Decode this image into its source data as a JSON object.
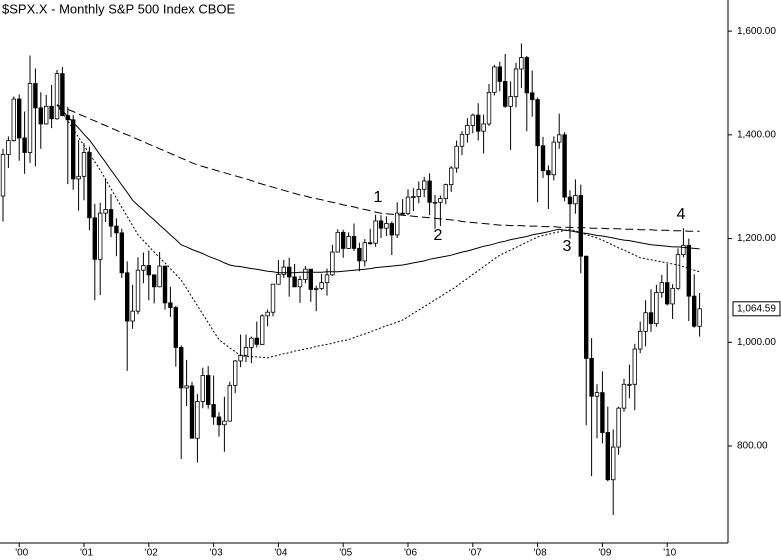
{
  "chart_data": {
    "type": "candlestick",
    "title": "$SPX.X - Monthly  S&P 500 Index  CBOE",
    "categories": [
      null,
      null,
      null,
      "'00",
      null,
      null,
      null,
      null,
      null,
      null,
      null,
      null,
      null,
      null,
      null,
      "'01",
      null,
      null,
      null,
      null,
      null,
      null,
      null,
      null,
      null,
      null,
      null,
      "'02",
      null,
      null,
      null,
      null,
      null,
      null,
      null,
      null,
      null,
      null,
      null,
      "'03",
      null,
      null,
      null,
      null,
      null,
      null,
      null,
      null,
      null,
      null,
      null,
      "'04",
      null,
      null,
      null,
      null,
      null,
      null,
      null,
      null,
      null,
      null,
      null,
      "'05",
      null,
      null,
      null,
      null,
      null,
      null,
      null,
      null,
      null,
      null,
      null,
      "'06",
      null,
      null,
      null,
      null,
      null,
      null,
      null,
      null,
      null,
      null,
      null,
      "'07",
      null,
      null,
      null,
      null,
      null,
      null,
      null,
      null,
      null,
      null,
      null,
      "'08",
      null,
      null,
      null,
      null,
      null,
      null,
      null,
      null,
      null,
      null,
      null,
      "'09",
      null,
      null,
      null,
      null,
      null,
      null,
      null,
      null,
      null,
      null,
      null,
      "'10",
      null,
      null,
      null,
      null,
      null,
      null
    ],
    "open": [
      1282,
      1362,
      1389,
      1469,
      1394,
      1366,
      1499,
      1452,
      1421,
      1455,
      1431,
      1518,
      1437,
      1429,
      1315,
      1320,
      1366,
      1240,
      1160,
      1249,
      1256,
      1224,
      1211,
      1134,
      1041,
      1060,
      1139,
      1148,
      1130,
      1107,
      1147,
      1076,
      1067,
      990,
      912,
      916,
      815,
      886,
      936,
      880,
      856,
      841,
      848,
      917,
      964,
      975,
      990,
      1008,
      996,
      1051,
      1058,
      1112,
      1131,
      1145,
      1126,
      1107,
      1121,
      1141,
      1102,
      1104,
      1115,
      1130,
      1174,
      1212,
      1181,
      1204,
      1181,
      1157,
      1192,
      1191,
      1234,
      1220,
      1229,
      1207,
      1249,
      1248,
      1280,
      1281,
      1295,
      1311,
      1270,
      1270,
      1277,
      1304,
      1336,
      1378,
      1401,
      1418,
      1438,
      1407,
      1421,
      1482,
      1531,
      1503,
      1455,
      1474,
      1527,
      1549,
      1481,
      1468,
      1379,
      1331,
      1323,
      1386,
      1400,
      1280,
      1267,
      1283,
      1166,
      969,
      896,
      903,
      826,
      735,
      798,
      873,
      919,
      919,
      987,
      1021,
      1057,
      1036,
      1096,
      1115,
      1074,
      1104,
      1169,
      1187,
      1089,
      1031
    ],
    "high": [
      1373,
      1397,
      1474,
      1478,
      1445,
      1553,
      1528,
      1482,
      1477,
      1496,
      1525,
      1531,
      1454,
      1438,
      1390,
      1384,
      1377,
      1267,
      1269,
      1316,
      1286,
      1239,
      1219,
      1156,
      1111,
      1164,
      1173,
      1177,
      1131,
      1174,
      1147,
      1107,
      1070,
      994,
      966,
      924,
      900,
      951,
      954,
      936,
      865,
      895,
      924,
      966,
      1015,
      1015,
      1011,
      1040,
      1054,
      1063,
      1112,
      1159,
      1159,
      1163,
      1151,
      1128,
      1147,
      1141,
      1109,
      1132,
      1142,
      1188,
      1218,
      1217,
      1212,
      1229,
      1192,
      1199,
      1219,
      1246,
      1245,
      1243,
      1233,
      1270,
      1276,
      1295,
      1297,
      1310,
      1319,
      1326,
      1284,
      1283,
      1306,
      1340,
      1389,
      1407,
      1432,
      1441,
      1461,
      1439,
      1498,
      1535,
      1541,
      1556,
      1503,
      1539,
      1576,
      1552,
      1524,
      1472,
      1396,
      1341,
      1397,
      1441,
      1405,
      1293,
      1314,
      1304,
      1167,
      1008,
      919,
      944,
      876,
      832,
      876,
      930,
      957,
      997,
      1040,
      1081,
      1102,
      1111,
      1130,
      1151,
      1112,
      1181,
      1220,
      1200,
      1131,
      1095
    ],
    "low": [
      1233,
      1336,
      1387,
      1350,
      1325,
      1346,
      1339,
      1373,
      1420,
      1413,
      1429,
      1436,
      1305,
      1294,
      1254,
      1274,
      1216,
      1081,
      1091,
      1232,
      1203,
      1166,
      1124,
      945,
      1026,
      1054,
      1114,
      1081,
      1075,
      1106,
      1063,
      1049,
      953,
      775,
      877,
      815,
      768,
      873,
      872,
      841,
      818,
      789,
      847,
      902,
      952,
      962,
      960,
      990,
      995,
      1031,
      1050,
      1112,
      1124,
      1088,
      1106,
      1076,
      1114,
      1078,
      1060,
      1101,
      1090,
      1128,
      1173,
      1163,
      1180,
      1176,
      1137,
      1146,
      1188,
      1184,
      1201,
      1205,
      1168,
      1201,
      1246,
      1245,
      1253,
      1268,
      1280,
      1245,
      1219,
      1224,
      1266,
      1290,
      1327,
      1361,
      1385,
      1403,
      1389,
      1364,
      1417,
      1476,
      1484,
      1452,
      1371,
      1453,
      1490,
      1407,
      1435,
      1270,
      1317,
      1257,
      1312,
      1373,
      1272,
      1200,
      1248,
      1133,
      840,
      742,
      815,
      805,
      732,
      667,
      783,
      866,
      892,
      869,
      979,
      992,
      1020,
      1030,
      1086,
      1071,
      1045,
      1101,
      1164,
      1041,
      1028,
      1011
    ],
    "close": [
      1362,
      1389,
      1469,
      1394,
      1366,
      1499,
      1452,
      1421,
      1455,
      1431,
      1518,
      1437,
      1429,
      1315,
      1320,
      1366,
      1240,
      1160,
      1249,
      1256,
      1224,
      1211,
      1134,
      1041,
      1060,
      1139,
      1148,
      1130,
      1107,
      1147,
      1076,
      1067,
      990,
      912,
      916,
      815,
      886,
      936,
      880,
      856,
      841,
      848,
      917,
      964,
      975,
      990,
      1008,
      996,
      1051,
      1058,
      1112,
      1131,
      1145,
      1126,
      1107,
      1121,
      1141,
      1102,
      1104,
      1115,
      1130,
      1174,
      1212,
      1181,
      1204,
      1181,
      1157,
      1192,
      1191,
      1234,
      1220,
      1229,
      1207,
      1249,
      1248,
      1280,
      1281,
      1295,
      1311,
      1270,
      1270,
      1277,
      1304,
      1336,
      1378,
      1401,
      1418,
      1438,
      1407,
      1421,
      1482,
      1531,
      1503,
      1455,
      1474,
      1527,
      1549,
      1481,
      1468,
      1379,
      1331,
      1323,
      1386,
      1400,
      1280,
      1267,
      1283,
      1166,
      969,
      896,
      903,
      826,
      735,
      798,
      873,
      919,
      919,
      987,
      1021,
      1057,
      1036,
      1096,
      1115,
      1074,
      1104,
      1169,
      1187,
      1089,
      1031,
      1064.59
    ],
    "last_close_label": "1,064.59",
    "lines": [
      {
        "style": "dashed",
        "color": "#000000",
        "values": [
          null,
          null,
          null,
          null,
          null,
          null,
          null,
          null,
          null,
          null,
          1458,
          1454,
          1449,
          1445,
          1440,
          1436,
          1431,
          1427,
          1422,
          1418,
          1413,
          1409,
          1404,
          1400,
          1396,
          1391,
          1387,
          1382,
          1378,
          1373,
          1369,
          1364,
          1360,
          1355,
          1351,
          1346,
          1342,
          1339,
          1336,
          1333,
          1330,
          1327,
          1324,
          1321,
          1318,
          1315,
          1312,
          1308,
          1305,
          1302,
          1299,
          1296,
          1293,
          1290,
          1287,
          1284,
          1282,
          1279,
          1277,
          1275,
          1272,
          1270,
          1268,
          1265,
          1263,
          1261,
          1258,
          1256,
          1254,
          1251,
          1249,
          1248,
          1247,
          1246,
          1245,
          1244,
          1243,
          1242,
          1241,
          1240,
          1239,
          1238,
          1237,
          1236,
          1235,
          1233,
          1232,
          1231,
          1230,
          1229,
          1228,
          1227,
          1226,
          1226,
          1225,
          1225,
          1225,
          1224,
          1224,
          1224,
          1223,
          1223,
          1223,
          1222,
          1222,
          1222,
          1221,
          1221,
          1221,
          1220,
          1220,
          1220,
          1219,
          1219,
          1219,
          1218,
          1218,
          1218,
          1217,
          1217,
          1217,
          1216,
          1216,
          1216,
          1215,
          1215,
          1215,
          1214,
          1214,
          1214
        ]
      },
      {
        "style": "solid",
        "color": "#000000",
        "values": [
          null,
          null,
          null,
          null,
          null,
          null,
          null,
          null,
          null,
          null,
          1458,
          1447,
          1435,
          1424,
          1413,
          1401,
          1390,
          1376,
          1361,
          1347,
          1332,
          1318,
          1303,
          1289,
          1274,
          1264,
          1255,
          1245,
          1236,
          1226,
          1217,
          1207,
          1198,
          1188,
          1184,
          1179,
          1175,
          1171,
          1166,
          1162,
          1158,
          1153,
          1149,
          1147,
          1146,
          1144,
          1142,
          1141,
          1139,
          1137,
          1136,
          1134,
          1134,
          1134,
          1134,
          1135,
          1135,
          1135,
          1135,
          1135,
          1136,
          1136,
          1136,
          1137,
          1138,
          1139,
          1140,
          1141,
          1142,
          1144,
          1145,
          1146,
          1147,
          1148,
          1149,
          1151,
          1153,
          1155,
          1157,
          1160,
          1162,
          1164,
          1166,
          1168,
          1171,
          1174,
          1176,
          1179,
          1182,
          1185,
          1187,
          1190,
          1193,
          1195,
          1198,
          1200,
          1202,
          1204,
          1207,
          1209,
          1211,
          1213,
          1216,
          1218,
          1216,
          1215,
          1213,
          1211,
          1210,
          1208,
          1206,
          1205,
          1203,
          1201,
          1199,
          1197,
          1196,
          1194,
          1192,
          1190,
          1188,
          1187,
          1186,
          1185,
          1184,
          1184,
          1183,
          1182,
          1181,
          1180
        ]
      },
      {
        "style": "dotted",
        "color": "#000000",
        "values": [
          null,
          null,
          null,
          null,
          null,
          null,
          null,
          null,
          null,
          null,
          1458,
          1442,
          1427,
          1411,
          1395,
          1379,
          1364,
          1348,
          1332,
          1314,
          1296,
          1278,
          1260,
          1243,
          1225,
          1207,
          1196,
          1185,
          1174,
          1163,
          1153,
          1142,
          1131,
          1120,
          1104,
          1087,
          1071,
          1054,
          1038,
          1021,
          1005,
          997,
          989,
          982,
          974,
          973,
          972,
          972,
          971,
          970,
          973,
          975,
          978,
          980,
          983,
          985,
          987,
          989,
          992,
          994,
          996,
          998,
          1001,
          1003,
          1005,
          1009,
          1013,
          1016,
          1020,
          1024,
          1028,
          1032,
          1035,
          1039,
          1043,
          1049,
          1056,
          1062,
          1069,
          1075,
          1082,
          1088,
          1095,
          1101,
          1108,
          1116,
          1123,
          1131,
          1138,
          1146,
          1153,
          1161,
          1168,
          1173,
          1178,
          1183,
          1188,
          1193,
          1198,
          1203,
          1206,
          1208,
          1211,
          1213,
          1216,
          1218,
          1215,
          1211,
          1208,
          1204,
          1201,
          1197,
          1192,
          1187,
          1182,
          1178,
          1173,
          1168,
          1163,
          1161,
          1159,
          1157,
          1155,
          1153,
          1151,
          1149,
          1146,
          1142,
          1139,
          1136
        ]
      }
    ],
    "annotations": [
      "1",
      "2",
      "3",
      "4"
    ],
    "ylim": [
      613,
      1660
    ],
    "yticks": [
      {
        "value": 800,
        "label": "800.00"
      },
      {
        "value": 1000,
        "label": "1,000.00"
      },
      {
        "value": 1200,
        "label": "1,200.00"
      },
      {
        "value": 1400,
        "label": "1,400.00"
      },
      {
        "value": 1600,
        "label": "1,600.00"
      }
    ],
    "up_color": "#ffffff",
    "down_color": "#000000"
  }
}
